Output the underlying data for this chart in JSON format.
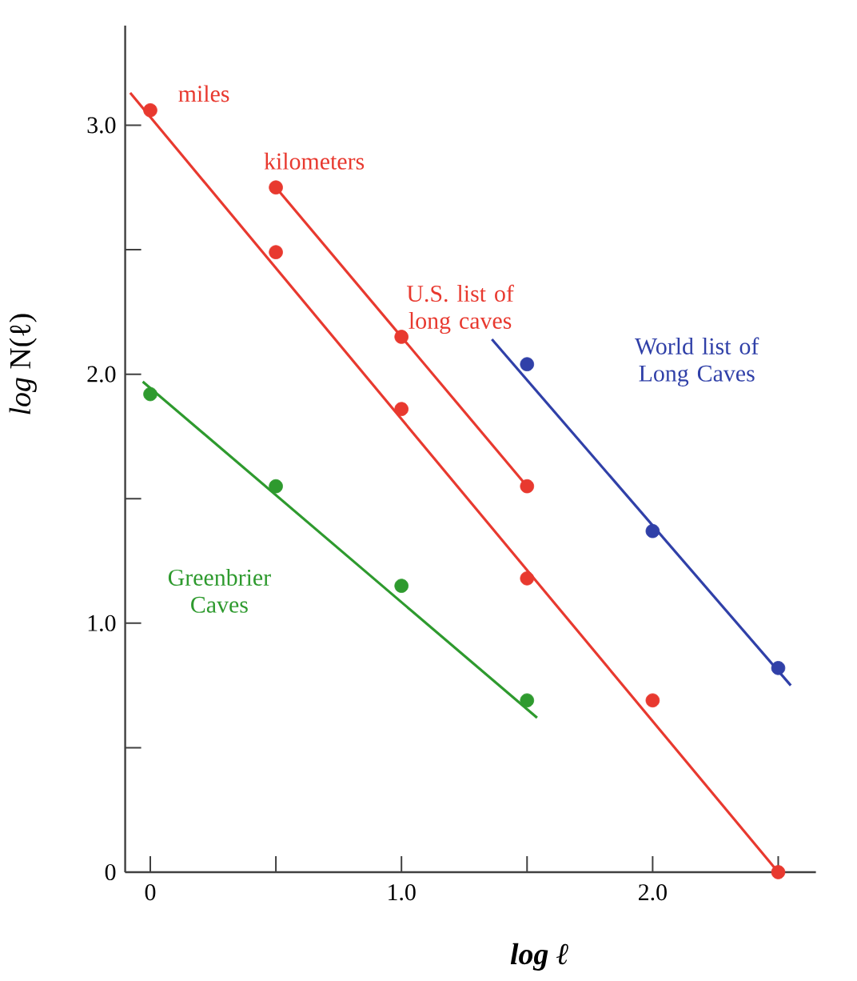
{
  "chart_data": {
    "type": "scatter",
    "xlabel": "log ℓ",
    "ylabel": "*log* N(ℓ)",
    "xlim": [
      -0.1,
      2.65
    ],
    "ylim": [
      0,
      3.4
    ],
    "xticks": [
      0,
      {
        "value": 0.5,
        "label": null
      },
      {
        "value": 1.0,
        "label": "1.0"
      },
      {
        "value": 1.5,
        "label": null
      },
      {
        "value": 2.0,
        "label": "2.0"
      },
      {
        "value": 2.5,
        "label": null
      }
    ],
    "yticks": [
      0,
      {
        "value": 0.5,
        "label": null
      },
      {
        "value": 1.0,
        "label": "1.0"
      },
      {
        "value": 1.5,
        "label": null
      },
      {
        "value": 2.0,
        "label": "2.0"
      },
      {
        "value": 2.5,
        "label": null
      },
      {
        "value": 3.0,
        "label": "3.0"
      }
    ],
    "annotations": [
      "U.S. list of long caves"
    ],
    "series": [
      {
        "name": "miles",
        "marker": "circle",
        "color": "#e8392f",
        "x": [
          0,
          0.5,
          1.0,
          1.5,
          2.0,
          2.5
        ],
        "values": [
          3.06,
          2.49,
          1.86,
          1.18,
          0.69,
          0
        ]
      },
      {
        "type": "line",
        "marker": "none",
        "color": "#e8392f",
        "x": [
          -0.08,
          2.5
        ],
        "values": [
          3.13,
          0
        ]
      },
      {
        "name": "kilometers",
        "marker": "circle",
        "color": "#e8392f",
        "x": [
          0.5,
          1.0,
          1.5
        ],
        "values": [
          2.75,
          2.15,
          1.55
        ]
      },
      {
        "type": "line",
        "marker": "none",
        "color": "#e8392f",
        "x": [
          0.5,
          1.5
        ],
        "values": [
          2.75,
          1.55
        ]
      },
      {
        "name": "World list of Long Caves",
        "marker": "circle",
        "color": "#3040a8",
        "x": [
          1.5,
          2.0,
          2.5
        ],
        "values": [
          2.04,
          1.37,
          0.82
        ]
      },
      {
        "type": "line",
        "marker": "none",
        "color": "#3040a8",
        "x": [
          1.36,
          2.55
        ],
        "values": [
          2.14,
          0.75
        ]
      },
      {
        "name": "Greenbrier Caves",
        "marker": "circle",
        "color": "#2e9a2e",
        "x": [
          0,
          0.5,
          1.0,
          1.5
        ],
        "values": [
          1.92,
          1.55,
          1.15,
          0.69
        ]
      },
      {
        "type": "line",
        "marker": "none",
        "color": "#2e9a2e",
        "x": [
          -0.03,
          1.54
        ],
        "values": [
          1.97,
          0.62
        ]
      }
    ]
  }
}
